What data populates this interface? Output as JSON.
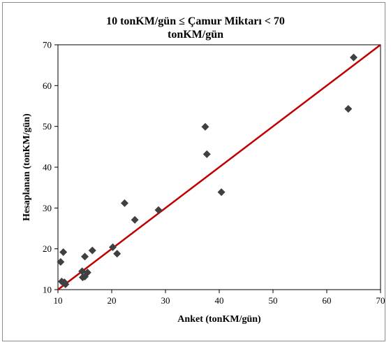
{
  "chart_data": {
    "type": "scatter",
    "title_lines": [
      "10 tonKM/gün ≤ Çamur Miktarı < 70",
      "tonKM/gün"
    ],
    "xlabel": "Anket (tonKM/gün)",
    "ylabel": "Hesaplanan (tonKM/gün)",
    "xlim": [
      10,
      70
    ],
    "ylim": [
      10,
      70
    ],
    "xticks": [
      10,
      20,
      30,
      40,
      50,
      60,
      70
    ],
    "yticks": [
      10,
      20,
      30,
      40,
      50,
      60,
      70
    ],
    "grid": false,
    "legend": "none",
    "points": [
      {
        "x": 10.5,
        "y": 16.8
      },
      {
        "x": 10.7,
        "y": 12.0
      },
      {
        "x": 11.0,
        "y": 19.2
      },
      {
        "x": 11.2,
        "y": 11.8
      },
      {
        "x": 11.4,
        "y": 11.3
      },
      {
        "x": 14.5,
        "y": 14.5
      },
      {
        "x": 14.6,
        "y": 13.0
      },
      {
        "x": 15.0,
        "y": 13.2
      },
      {
        "x": 15.5,
        "y": 14.2
      },
      {
        "x": 15.0,
        "y": 18.1
      },
      {
        "x": 16.4,
        "y": 19.6
      },
      {
        "x": 20.2,
        "y": 20.4
      },
      {
        "x": 21.0,
        "y": 18.8
      },
      {
        "x": 22.4,
        "y": 31.2
      },
      {
        "x": 24.3,
        "y": 27.1
      },
      {
        "x": 28.7,
        "y": 29.5
      },
      {
        "x": 37.4,
        "y": 49.9
      },
      {
        "x": 37.7,
        "y": 43.2
      },
      {
        "x": 40.4,
        "y": 33.9
      },
      {
        "x": 64.0,
        "y": 54.3
      },
      {
        "x": 65.0,
        "y": 66.9
      }
    ],
    "reference_line": {
      "from": [
        10,
        10
      ],
      "to": [
        70,
        70
      ],
      "color": "#c00000"
    },
    "marker_color": "#404040"
  }
}
